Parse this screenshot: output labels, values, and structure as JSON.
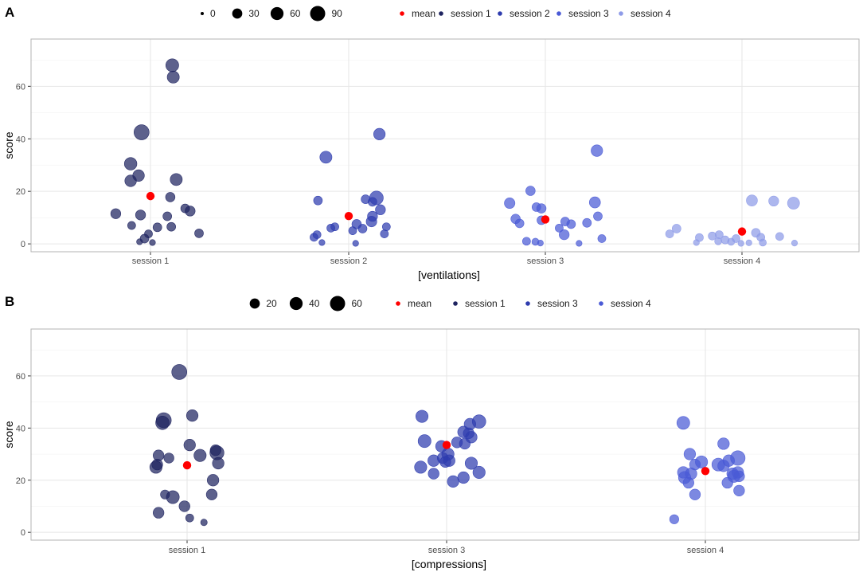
{
  "chart_data": [
    {
      "panel": "A",
      "type": "scatter",
      "xlabel": "[ventilations]",
      "ylabel": "score",
      "categories": [
        "session 1",
        "session 2",
        "session 3",
        "session 4"
      ],
      "y_ticks": [
        0,
        20,
        40,
        60
      ],
      "ylim": [
        -3,
        78
      ],
      "size_legend": {
        "labels": [
          "0",
          "30",
          "60",
          "90"
        ],
        "values": [
          0,
          30,
          60,
          90
        ]
      },
      "color_legend": [
        {
          "label": "mean",
          "color": "#ff0000"
        },
        {
          "label": "session 1",
          "color": "#1f2460"
        },
        {
          "label": "session 2",
          "color": "#2e3cae"
        },
        {
          "label": "session 3",
          "color": "#4a5ad6"
        },
        {
          "label": "session 4",
          "color": "#8e9be8"
        }
      ],
      "means": [
        18.2,
        10.6,
        9.3,
        4.7
      ],
      "series": [
        {
          "name": "session 1",
          "category": 0,
          "points": [
            {
              "dx": 0.22,
              "y": 68,
              "s": 60
            },
            {
              "dx": 0.23,
              "y": 63.5,
              "s": 50
            },
            {
              "dx": -0.09,
              "y": 42.5,
              "s": 90
            },
            {
              "dx": -0.2,
              "y": 30.5,
              "s": 55
            },
            {
              "dx": -0.12,
              "y": 26,
              "s": 45
            },
            {
              "dx": -0.2,
              "y": 24,
              "s": 45
            },
            {
              "dx": 0.26,
              "y": 24.5,
              "s": 50
            },
            {
              "dx": 0.2,
              "y": 17.8,
              "s": 25
            },
            {
              "dx": 0.35,
              "y": 13.5,
              "s": 20
            },
            {
              "dx": 0.4,
              "y": 12.5,
              "s": 30
            },
            {
              "dx": -0.35,
              "y": 11.5,
              "s": 30
            },
            {
              "dx": -0.1,
              "y": 11,
              "s": 30
            },
            {
              "dx": 0.17,
              "y": 10.5,
              "s": 20
            },
            {
              "dx": -0.19,
              "y": 7,
              "s": 15
            },
            {
              "dx": 0.07,
              "y": 6.3,
              "s": 20
            },
            {
              "dx": 0.21,
              "y": 6.5,
              "s": 20
            },
            {
              "dx": 0.49,
              "y": 4,
              "s": 20
            },
            {
              "dx": -0.02,
              "y": 3.8,
              "s": 15
            },
            {
              "dx": -0.06,
              "y": 2,
              "s": 20
            },
            {
              "dx": -0.11,
              "y": 0.8,
              "s": 5
            },
            {
              "dx": 0.02,
              "y": 0.5,
              "s": 5
            }
          ]
        },
        {
          "name": "session 2",
          "category": 1,
          "points": [
            {
              "dx": 0.31,
              "y": 41.8,
              "s": 45
            },
            {
              "dx": -0.23,
              "y": 33,
              "s": 50
            },
            {
              "dx": 0.28,
              "y": 17.5,
              "s": 70
            },
            {
              "dx": -0.31,
              "y": 16.5,
              "s": 20
            },
            {
              "dx": 0.17,
              "y": 17,
              "s": 20
            },
            {
              "dx": 0.24,
              "y": 16,
              "s": 20
            },
            {
              "dx": 0.32,
              "y": 13,
              "s": 30
            },
            {
              "dx": 0.24,
              "y": 10.5,
              "s": 30
            },
            {
              "dx": 0.23,
              "y": 8.5,
              "s": 35
            },
            {
              "dx": 0.08,
              "y": 7.5,
              "s": 25
            },
            {
              "dx": -0.14,
              "y": 6.5,
              "s": 15
            },
            {
              "dx": 0.38,
              "y": 6.5,
              "s": 15
            },
            {
              "dx": -0.18,
              "y": 6,
              "s": 15
            },
            {
              "dx": 0.14,
              "y": 5.8,
              "s": 20
            },
            {
              "dx": 0.04,
              "y": 5,
              "s": 15
            },
            {
              "dx": -0.32,
              "y": 3.5,
              "s": 15
            },
            {
              "dx": -0.35,
              "y": 2.5,
              "s": 15
            },
            {
              "dx": 0.36,
              "y": 3.8,
              "s": 15
            },
            {
              "dx": -0.27,
              "y": 0.5,
              "s": 5
            },
            {
              "dx": 0.07,
              "y": 0.2,
              "s": 5
            }
          ]
        },
        {
          "name": "session 3",
          "category": 2,
          "points": [
            {
              "dx": 0.52,
              "y": 35.5,
              "s": 45
            },
            {
              "dx": -0.36,
              "y": 15.5,
              "s": 35
            },
            {
              "dx": -0.15,
              "y": 20.2,
              "s": 25
            },
            {
              "dx": 0.5,
              "y": 15.8,
              "s": 40
            },
            {
              "dx": -0.09,
              "y": 14,
              "s": 20
            },
            {
              "dx": -0.04,
              "y": 13.5,
              "s": 25
            },
            {
              "dx": -0.3,
              "y": 9.5,
              "s": 25
            },
            {
              "dx": -0.04,
              "y": 9,
              "s": 20
            },
            {
              "dx": 0.53,
              "y": 10.5,
              "s": 20
            },
            {
              "dx": 0.2,
              "y": 8.5,
              "s": 20
            },
            {
              "dx": 0.42,
              "y": 8,
              "s": 20
            },
            {
              "dx": -0.26,
              "y": 7.8,
              "s": 20
            },
            {
              "dx": 0.26,
              "y": 7.5,
              "s": 20
            },
            {
              "dx": 0.14,
              "y": 6,
              "s": 15
            },
            {
              "dx": 0.19,
              "y": 3.5,
              "s": 30
            },
            {
              "dx": 0.57,
              "y": 2,
              "s": 15
            },
            {
              "dx": -0.19,
              "y": 1,
              "s": 15
            },
            {
              "dx": -0.1,
              "y": 0.8,
              "s": 10
            },
            {
              "dx": -0.05,
              "y": 0.3,
              "s": 5
            },
            {
              "dx": 0.34,
              "y": 0.2,
              "s": 5
            }
          ]
        },
        {
          "name": "session 4",
          "category": 3,
          "points": [
            {
              "dx": 0.1,
              "y": 16.5,
              "s": 40
            },
            {
              "dx": 0.32,
              "y": 16.3,
              "s": 30
            },
            {
              "dx": 0.52,
              "y": 15.5,
              "s": 50
            },
            {
              "dx": -0.66,
              "y": 5.8,
              "s": 20
            },
            {
              "dx": -0.73,
              "y": 3.8,
              "s": 15
            },
            {
              "dx": 0.14,
              "y": 4.2,
              "s": 20
            },
            {
              "dx": -0.23,
              "y": 3.5,
              "s": 15
            },
            {
              "dx": -0.3,
              "y": 3,
              "s": 15
            },
            {
              "dx": 0.19,
              "y": 2.5,
              "s": 15
            },
            {
              "dx": 0.38,
              "y": 2.8,
              "s": 15
            },
            {
              "dx": -0.43,
              "y": 2.4,
              "s": 15
            },
            {
              "dx": -0.06,
              "y": 2,
              "s": 15
            },
            {
              "dx": -0.17,
              "y": 1.5,
              "s": 15
            },
            {
              "dx": -0.24,
              "y": 1,
              "s": 10
            },
            {
              "dx": -0.11,
              "y": 0.8,
              "s": 10
            },
            {
              "dx": 0.21,
              "y": 0.5,
              "s": 10
            },
            {
              "dx": 0.07,
              "y": 0.4,
              "s": 5
            },
            {
              "dx": -0.46,
              "y": 0.5,
              "s": 5
            },
            {
              "dx": 0.53,
              "y": 0.3,
              "s": 5
            },
            {
              "dx": -0.01,
              "y": 0.2,
              "s": 5
            }
          ]
        }
      ]
    },
    {
      "panel": "B",
      "type": "scatter",
      "xlabel": "[compressions]",
      "ylabel": "score",
      "categories": [
        "session 1",
        "session 3",
        "session 4"
      ],
      "y_ticks": [
        0,
        20,
        40,
        60
      ],
      "ylim": [
        -3,
        78
      ],
      "size_legend": {
        "labels": [
          "20",
          "40",
          "60"
        ],
        "values": [
          20,
          40,
          60
        ]
      },
      "color_legend": [
        {
          "label": "mean",
          "color": "#ff0000"
        },
        {
          "label": "session 1",
          "color": "#1f2460"
        },
        {
          "label": "session 3",
          "color": "#2e3cae"
        },
        {
          "label": "session 4",
          "color": "#4a5ad6"
        }
      ],
      "means": [
        25.7,
        33.5,
        23.5
      ],
      "series": [
        {
          "name": "session 1",
          "category": 0,
          "points": [
            {
              "dx": -0.06,
              "y": 61.5,
              "s": 60
            },
            {
              "dx": -0.18,
              "y": 43,
              "s": 60
            },
            {
              "dx": -0.19,
              "y": 42,
              "s": 45
            },
            {
              "dx": 0.04,
              "y": 44.8,
              "s": 30
            },
            {
              "dx": 0.02,
              "y": 33.5,
              "s": 30
            },
            {
              "dx": 0.22,
              "y": 31.5,
              "s": 25
            },
            {
              "dx": 0.23,
              "y": 30.5,
              "s": 50
            },
            {
              "dx": 0.1,
              "y": 29.5,
              "s": 35
            },
            {
              "dx": -0.22,
              "y": 29.5,
              "s": 25
            },
            {
              "dx": -0.14,
              "y": 28.5,
              "s": 20
            },
            {
              "dx": 0.24,
              "y": 26.5,
              "s": 30
            },
            {
              "dx": -0.23,
              "y": 26,
              "s": 25
            },
            {
              "dx": -0.24,
              "y": 25,
              "s": 35
            },
            {
              "dx": 0.2,
              "y": 20,
              "s": 30
            },
            {
              "dx": -0.17,
              "y": 14.5,
              "s": 15
            },
            {
              "dx": 0.19,
              "y": 14.5,
              "s": 25
            },
            {
              "dx": -0.11,
              "y": 13.5,
              "s": 40
            },
            {
              "dx": -0.02,
              "y": 10,
              "s": 25
            },
            {
              "dx": -0.22,
              "y": 7.5,
              "s": 25
            },
            {
              "dx": 0.02,
              "y": 5.5,
              "s": 10
            },
            {
              "dx": 0.13,
              "y": 3.8,
              "s": 5
            }
          ]
        },
        {
          "name": "session 3",
          "category": 1,
          "points": [
            {
              "dx": -0.19,
              "y": 44.5,
              "s": 35
            },
            {
              "dx": 0.25,
              "y": 42.5,
              "s": 45
            },
            {
              "dx": 0.18,
              "y": 41.5,
              "s": 30
            },
            {
              "dx": 0.13,
              "y": 38.5,
              "s": 30
            },
            {
              "dx": 0.17,
              "y": 38,
              "s": 25
            },
            {
              "dx": 0.19,
              "y": 36.5,
              "s": 30
            },
            {
              "dx": -0.17,
              "y": 35,
              "s": 40
            },
            {
              "dx": 0.08,
              "y": 34.5,
              "s": 25
            },
            {
              "dx": 0.14,
              "y": 34,
              "s": 25
            },
            {
              "dx": -0.04,
              "y": 33,
              "s": 30
            },
            {
              "dx": 0.01,
              "y": 30,
              "s": 35
            },
            {
              "dx": -0.03,
              "y": 28.5,
              "s": 25
            },
            {
              "dx": 0.02,
              "y": 27.5,
              "s": 30
            },
            {
              "dx": -0.1,
              "y": 27.5,
              "s": 30
            },
            {
              "dx": -0.01,
              "y": 27,
              "s": 25
            },
            {
              "dx": 0.19,
              "y": 26.5,
              "s": 35
            },
            {
              "dx": -0.2,
              "y": 25,
              "s": 35
            },
            {
              "dx": 0.25,
              "y": 23,
              "s": 35
            },
            {
              "dx": -0.1,
              "y": 22.5,
              "s": 25
            },
            {
              "dx": 0.13,
              "y": 21,
              "s": 30
            },
            {
              "dx": 0.05,
              "y": 19.5,
              "s": 30
            }
          ]
        },
        {
          "name": "session 4",
          "category": 2,
          "points": [
            {
              "dx": -0.17,
              "y": 42,
              "s": 40
            },
            {
              "dx": 0.14,
              "y": 34,
              "s": 30
            },
            {
              "dx": -0.12,
              "y": 30,
              "s": 30
            },
            {
              "dx": 0.25,
              "y": 28.5,
              "s": 55
            },
            {
              "dx": 0.18,
              "y": 27.5,
              "s": 30
            },
            {
              "dx": -0.03,
              "y": 27,
              "s": 35
            },
            {
              "dx": -0.08,
              "y": 26,
              "s": 25
            },
            {
              "dx": 0.1,
              "y": 26,
              "s": 40
            },
            {
              "dx": 0.14,
              "y": 25.5,
              "s": 30
            },
            {
              "dx": -0.17,
              "y": 23,
              "s": 30
            },
            {
              "dx": 0.25,
              "y": 23,
              "s": 30
            },
            {
              "dx": -0.11,
              "y": 22.5,
              "s": 30
            },
            {
              "dx": 0.21,
              "y": 22.5,
              "s": 30
            },
            {
              "dx": 0.22,
              "y": 21.5,
              "s": 35
            },
            {
              "dx": 0.26,
              "y": 21.5,
              "s": 25
            },
            {
              "dx": -0.16,
              "y": 21,
              "s": 35
            },
            {
              "dx": -0.13,
              "y": 19,
              "s": 25
            },
            {
              "dx": 0.17,
              "y": 19,
              "s": 25
            },
            {
              "dx": 0.26,
              "y": 16,
              "s": 25
            },
            {
              "dx": -0.08,
              "y": 14.5,
              "s": 25
            },
            {
              "dx": -0.24,
              "y": 5,
              "s": 15
            }
          ]
        }
      ]
    }
  ]
}
